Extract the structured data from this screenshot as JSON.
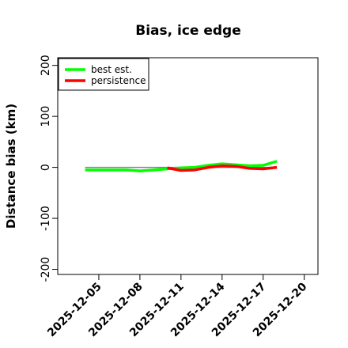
{
  "chart_data": {
    "type": "line",
    "title": "Bias, ice edge",
    "xlabel": "",
    "ylabel": "Distance bias (km)",
    "ylim": [
      -210,
      215
    ],
    "xlim": [
      "2025-12-02",
      "2025-12-21"
    ],
    "yticks": [
      -200,
      -100,
      0,
      100,
      200
    ],
    "xticks": [
      "2025-12-05",
      "2025-12-08",
      "2025-12-11",
      "2025-12-14",
      "2025-12-17",
      "2025-12-20"
    ],
    "grid": false,
    "legend_position": "top-left",
    "reference_line": {
      "y": 0,
      "color": "#808080"
    },
    "series": [
      {
        "name": "best est.",
        "color": "#00ff00",
        "x": [
          "2025-12-04",
          "2025-12-05",
          "2025-12-06",
          "2025-12-07",
          "2025-12-08",
          "2025-12-09",
          "2025-12-10",
          "2025-12-11",
          "2025-12-12",
          "2025-12-13",
          "2025-12-14",
          "2025-12-15",
          "2025-12-16",
          "2025-12-17",
          "2025-12-18"
        ],
        "values": [
          -5,
          -5,
          -5,
          -5,
          -7,
          -5,
          -3,
          -1,
          0,
          4,
          7,
          5,
          3,
          4,
          12
        ]
      },
      {
        "name": "persistence",
        "color": "#ff0000",
        "x": [
          "2025-12-10",
          "2025-12-11",
          "2025-12-12",
          "2025-12-13",
          "2025-12-14",
          "2025-12-15",
          "2025-12-16",
          "2025-12-17",
          "2025-12-18"
        ],
        "values": [
          -1,
          -6,
          -5,
          0,
          3,
          2,
          -2,
          -3,
          0
        ]
      }
    ]
  }
}
